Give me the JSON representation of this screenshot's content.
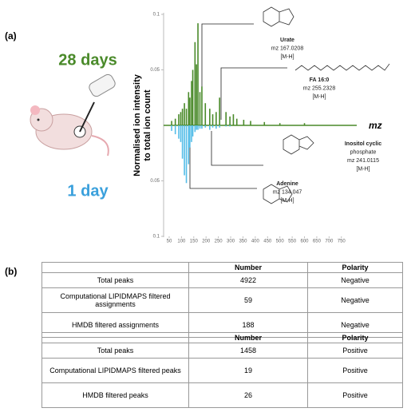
{
  "panel_a_label": "(a)",
  "panel_b_label": "(b)",
  "chart_data": {
    "type": "mirror-spectrum",
    "label_top": "28 days",
    "label_bottom": "1 day",
    "ylabel": [
      "Normalised ion intensity",
      "to total ion count"
    ],
    "xlabel": "mz",
    "x": [
      60,
      75,
      89,
      97,
      104,
      112,
      120,
      129,
      134,
      141,
      146,
      155,
      161,
      167,
      175,
      183,
      197,
      215,
      227,
      241,
      255,
      281,
      297,
      311,
      325,
      353,
      381,
      437,
      500,
      600
    ],
    "series": [
      {
        "name": "28 days",
        "color": "#4a8a2a",
        "values": [
          0.004,
          0.006,
          0.01,
          0.012,
          0.015,
          0.02,
          0.015,
          0.03,
          0.025,
          0.04,
          0.05,
          0.075,
          0.055,
          0.092,
          0.03,
          0.035,
          0.02,
          0.015,
          0.01,
          0.012,
          0.025,
          0.012,
          0.008,
          0.01,
          0.006,
          0.005,
          0.004,
          0.003,
          0.002,
          0.002
        ]
      },
      {
        "name": "1 day",
        "color": "#55bde8",
        "values": [
          -0.005,
          -0.008,
          -0.012,
          -0.015,
          -0.03,
          -0.045,
          -0.052,
          -0.035,
          -0.02,
          -0.015,
          -0.01,
          -0.006,
          -0.004,
          -0.004,
          -0.003,
          -0.003,
          -0.002,
          -0.004,
          -0.002,
          -0.003,
          -0.002,
          -0.001,
          -0.001,
          0,
          0,
          0,
          0,
          0,
          0,
          0
        ]
      }
    ],
    "xlim": [
      30,
      780
    ],
    "xticks": [
      50,
      100,
      150,
      200,
      250,
      300,
      350,
      400,
      450,
      500,
      550,
      600,
      650,
      700,
      750
    ],
    "ylim": [
      -0.1,
      0.1
    ],
    "yticks": [
      {
        "value": -0.1,
        "label": "0.1"
      },
      {
        "value": -0.05,
        "label": "0.05"
      },
      0.05,
      0.1
    ],
    "annotations": [
      {
        "lines": [
          "Urate",
          "mz 167.0208",
          "[M-H]"
        ]
      },
      {
        "lines": [
          "FA 16:0",
          "mz 255.2328",
          "[M-H]"
        ]
      },
      {
        "lines": [
          "Inositol cyclic",
          "phosphate",
          "mz 241.0115",
          "[M-H]"
        ]
      },
      {
        "lines": [
          "Adenine",
          "mz 134.047",
          "[M-H]"
        ]
      }
    ]
  },
  "tables": [
    {
      "header": [
        "Number",
        "Polarity"
      ],
      "rows": [
        [
          "Total peaks",
          4922,
          "Negative"
        ],
        [
          "Computational LIPIDMAPS filtered assignments",
          59,
          "Negative"
        ],
        [
          "HMDB filtered assignments",
          188,
          "Negative"
        ]
      ]
    },
    {
      "header": [
        "Number",
        "Polarity"
      ],
      "rows": [
        [
          "Total peaks",
          1458,
          "Positive"
        ],
        [
          "Computational LIPIDMAPS filtered peaks",
          19,
          "Positive"
        ],
        [
          "HMDB filtered peaks",
          26,
          "Positive"
        ]
      ]
    }
  ]
}
